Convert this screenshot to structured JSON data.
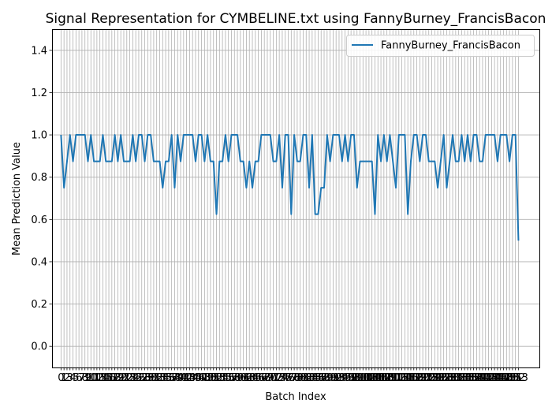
{
  "chart_data": {
    "type": "line",
    "title": "Signal Representation for CYMBELINE.txt using FannyBurney_FrancisBacon",
    "xlabel": "Batch Index",
    "ylabel": "Mean Prediction Value",
    "xlim": [
      -3,
      160
    ],
    "ylim": [
      -0.1,
      1.5
    ],
    "yticks": [
      0.0,
      0.2,
      0.4,
      0.6,
      0.8,
      1.0,
      1.2,
      1.4
    ],
    "grid": true,
    "legend_position": "top-right",
    "series": [
      {
        "name": "FannyBurney_FrancisBacon",
        "color": "#1f77b4",
        "values": [
          1.0,
          0.75,
          0.875,
          1.0,
          0.875,
          1.0,
          1.0,
          1.0,
          1.0,
          0.875,
          1.0,
          0.875,
          0.875,
          0.875,
          1.0,
          0.875,
          0.875,
          0.875,
          1.0,
          0.875,
          1.0,
          0.875,
          0.875,
          0.875,
          1.0,
          0.875,
          1.0,
          1.0,
          0.875,
          1.0,
          1.0,
          0.875,
          0.875,
          0.875,
          0.75,
          0.875,
          0.875,
          1.0,
          0.75,
          1.0,
          0.875,
          1.0,
          1.0,
          1.0,
          1.0,
          0.875,
          1.0,
          1.0,
          0.875,
          1.0,
          0.875,
          0.875,
          0.625,
          0.875,
          0.875,
          1.0,
          0.875,
          1.0,
          1.0,
          1.0,
          0.875,
          0.875,
          0.75,
          0.875,
          0.75,
          0.875,
          0.875,
          1.0,
          1.0,
          1.0,
          1.0,
          0.875,
          0.875,
          1.0,
          0.75,
          1.0,
          1.0,
          0.625,
          1.0,
          0.875,
          0.875,
          1.0,
          1.0,
          0.75,
          1.0,
          0.625,
          0.625,
          0.75,
          0.75,
          1.0,
          0.875,
          1.0,
          1.0,
          1.0,
          0.875,
          1.0,
          0.875,
          1.0,
          1.0,
          0.75,
          0.875,
          0.875,
          0.875,
          0.875,
          0.875,
          0.625,
          1.0,
          0.875,
          1.0,
          0.875,
          1.0,
          0.875,
          0.75,
          1.0,
          1.0,
          1.0,
          0.625,
          0.875,
          1.0,
          1.0,
          0.875,
          1.0,
          1.0,
          0.875,
          0.875,
          0.875,
          0.75,
          0.875,
          1.0,
          0.75,
          0.875,
          1.0,
          0.875,
          0.875,
          1.0,
          0.875,
          1.0,
          0.875,
          1.0,
          1.0,
          0.875,
          0.875,
          1.0,
          1.0,
          1.0,
          1.0,
          0.875,
          1.0,
          1.0,
          1.0,
          0.875,
          1.0,
          1.0,
          0.5
        ]
      }
    ]
  }
}
